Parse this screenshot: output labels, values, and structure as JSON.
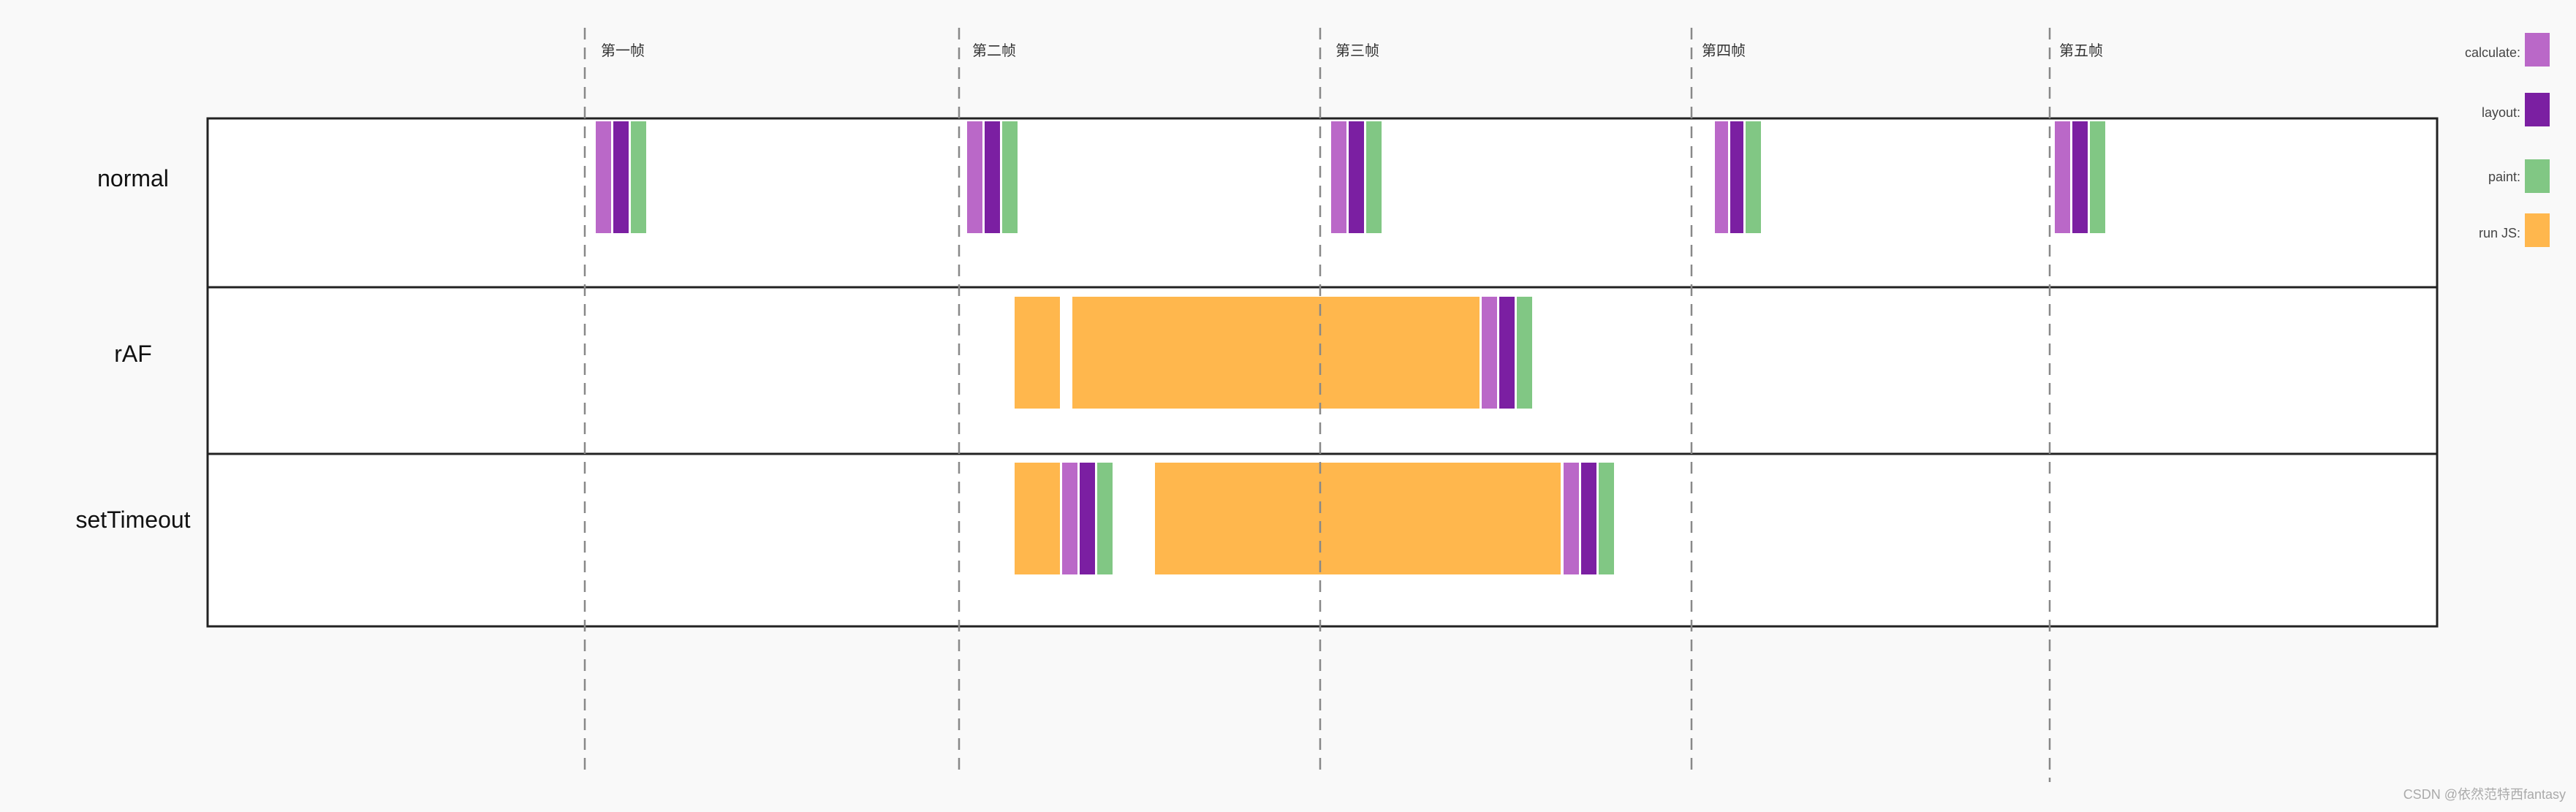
{
  "colors": {
    "calculate": "#ba68c8",
    "layout": "#7b1fa2",
    "paint": "#81c784",
    "runjs": "#ffb74d"
  },
  "frames": [
    "第一帧",
    "第二帧",
    "第三帧",
    "第四帧",
    "第五帧"
  ],
  "rows": [
    {
      "label": "normal"
    },
    {
      "label": "rAF"
    },
    {
      "label": "setTimeout"
    }
  ],
  "legend": [
    {
      "key": "calculate",
      "label": "calculate:",
      "icon": "swatch-calculate"
    },
    {
      "key": "layout",
      "label": "layout:",
      "icon": "swatch-layout"
    },
    {
      "key": "paint",
      "label": "paint:",
      "icon": "swatch-paint"
    },
    {
      "key": "runjs",
      "label": "run JS:",
      "icon": "swatch-runjs"
    }
  ],
  "watermark": "CSDN @依然范特西fantasy"
}
